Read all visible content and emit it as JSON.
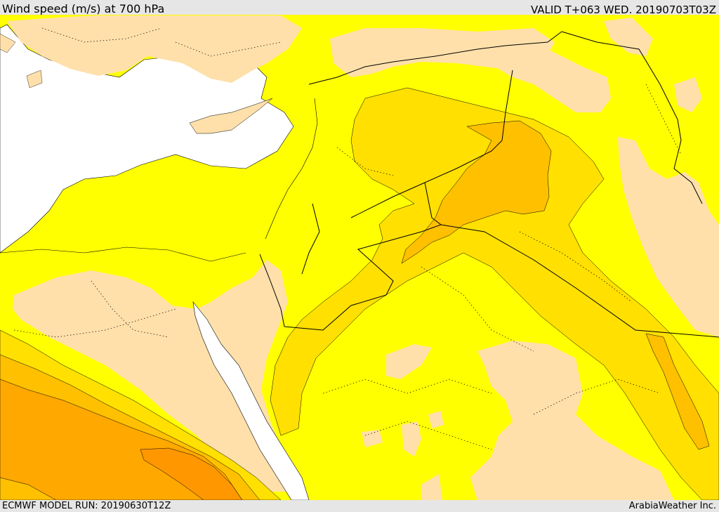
{
  "header": {
    "title": "Wind speed (m/s) at 700 hPa",
    "valid_time": "VALID T+063 WED. 20190703T03Z"
  },
  "footer": {
    "model_run": "ECMWF MODEL RUN: 20190630T12Z",
    "credit": "ArabiaWeather Inc."
  },
  "map": {
    "variable": "wind speed",
    "level": "700 hPa",
    "units": "m/s",
    "colors": {
      "water": "#ffffff",
      "lowest": "#ffe0aa",
      "low": "#ffff00",
      "moderate": "#ffe000",
      "high": "#ffc000",
      "higher": "#ffa800",
      "highest": "#ff9700"
    }
  }
}
